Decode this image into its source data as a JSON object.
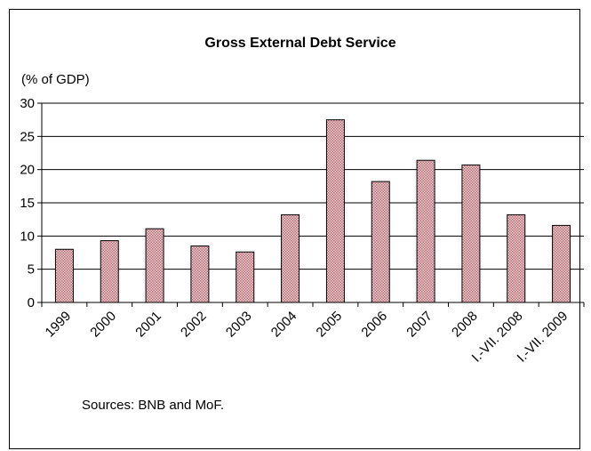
{
  "chart_data": {
    "type": "bar",
    "title": "Gross External Debt Service",
    "ylabel": "(% of GDP)",
    "xlabel": "",
    "categories": [
      "1999",
      "2000",
      "2001",
      "2002",
      "2003",
      "2004",
      "2005",
      "2006",
      "2007",
      "2008",
      "I.-VII. 2008",
      "I.-VII. 2009"
    ],
    "values": [
      8.0,
      9.3,
      11.1,
      8.5,
      7.6,
      13.2,
      27.5,
      18.2,
      21.4,
      20.7,
      13.2,
      11.6
    ],
    "ylim": [
      0,
      30
    ],
    "yticks": [
      0,
      5,
      10,
      15,
      20,
      25,
      30
    ],
    "grid": true,
    "legend": "none",
    "bar_color": "#c9878b",
    "note": "Sources: BNB and MoF."
  }
}
